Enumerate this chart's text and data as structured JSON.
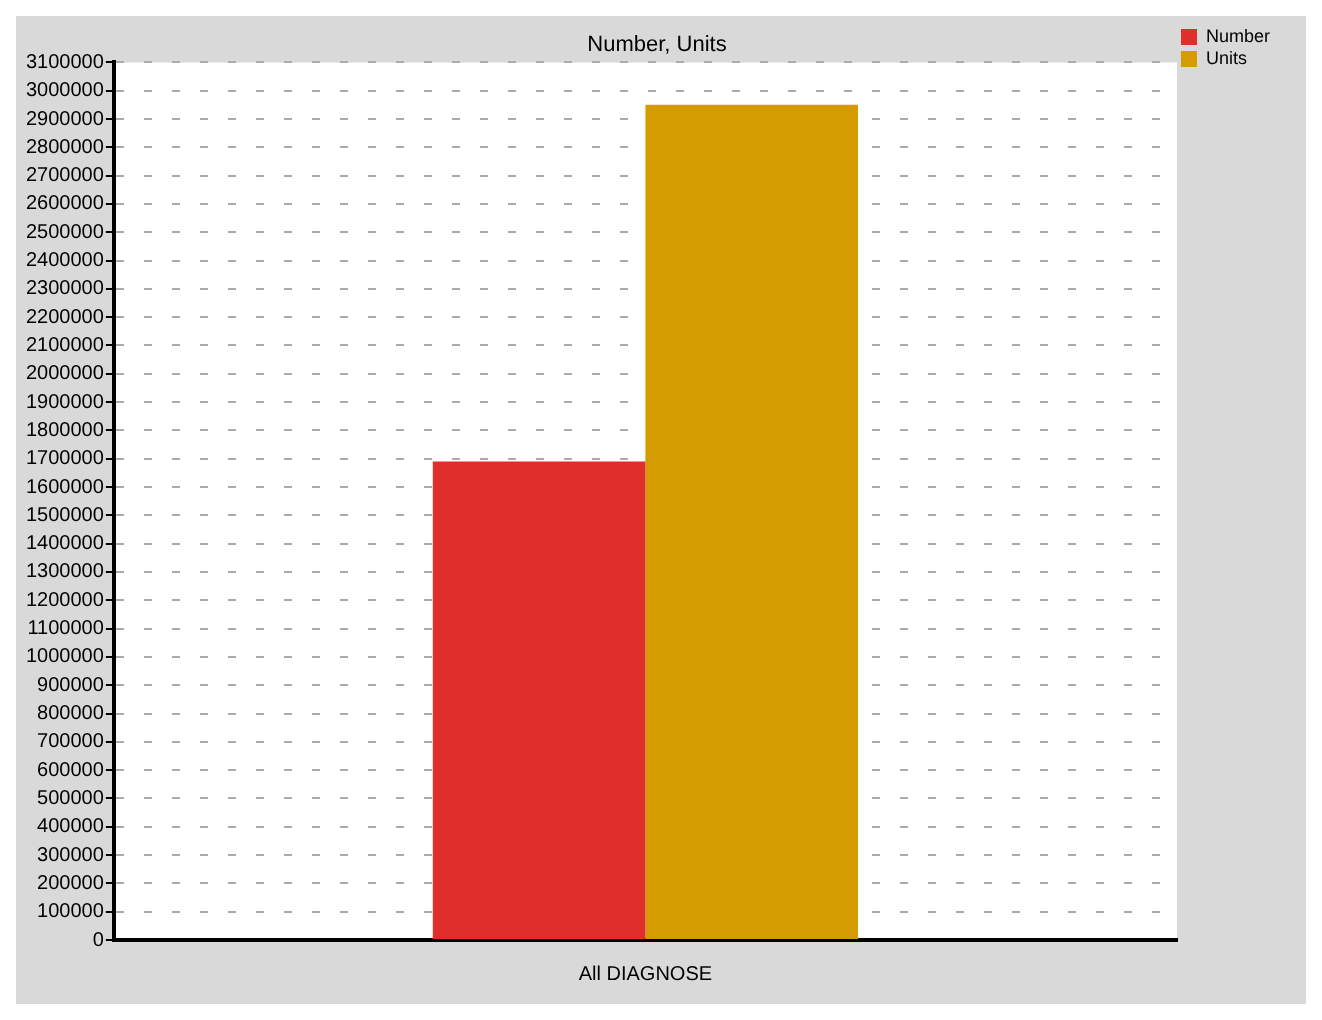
{
  "chart_data": {
    "type": "bar",
    "title": "Number, Units",
    "categories": [
      "All DIAGNOSE"
    ],
    "series": [
      {
        "name": "Number",
        "color": "#e02e2b",
        "values": [
          1690000
        ]
      },
      {
        "name": "Units",
        "color": "#d49c00",
        "values": [
          2950000
        ]
      }
    ],
    "ylim": [
      0,
      3100000
    ],
    "yticks": [
      0,
      100000,
      200000,
      300000,
      400000,
      500000,
      600000,
      700000,
      800000,
      900000,
      1000000,
      1100000,
      1200000,
      1300000,
      1400000,
      1500000,
      1600000,
      1700000,
      1800000,
      1900000,
      2000000,
      2100000,
      2200000,
      2300000,
      2400000,
      2500000,
      2600000,
      2700000,
      2800000,
      2900000,
      3000000,
      3100000
    ],
    "grid": "y",
    "line_style": "dashed",
    "legend": "top right"
  }
}
